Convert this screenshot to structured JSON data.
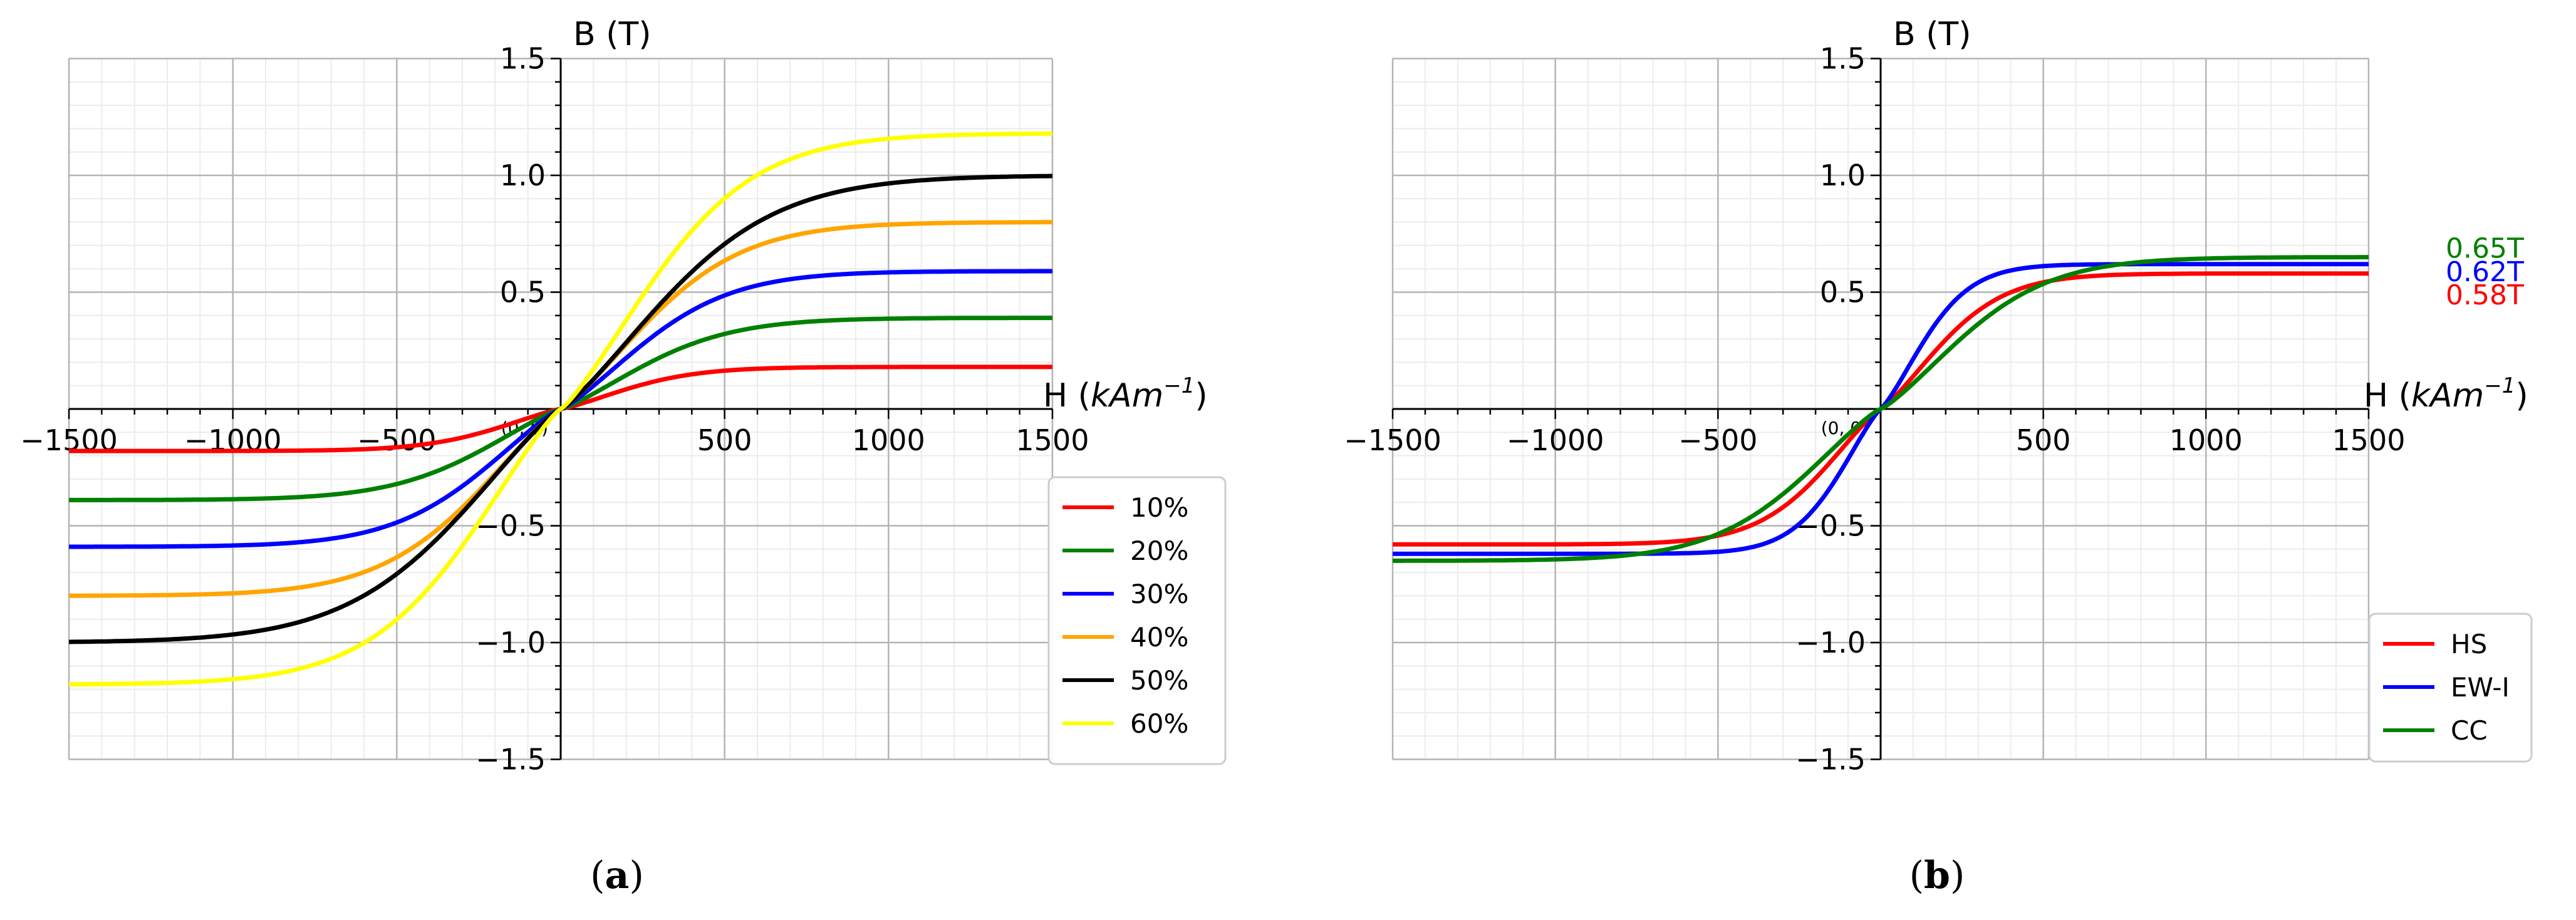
{
  "chart_data": [
    {
      "type": "line",
      "panel_label": "a",
      "ylabel": "B (T)",
      "xlabel_prefix": "H (",
      "xlabel_unit": "kAm",
      "xlabel_exp": "−1",
      "xlabel_suffix": ")",
      "origin_label": "(0, 0)",
      "xlim": [
        -1500,
        1500
      ],
      "ylim": [
        -1.5,
        1.5
      ],
      "xticks": [
        -1500,
        -1000,
        -500,
        500,
        1000,
        1500
      ],
      "xtick_labels": [
        "−1500",
        "−1000",
        "−500",
        "500",
        "1000",
        "1500"
      ],
      "yticks": [
        -1.5,
        -1.0,
        -0.5,
        0.5,
        1.0,
        1.5
      ],
      "ytick_labels": [
        "−1.5",
        "−1.0",
        "−0.5",
        "0.5",
        "1.0",
        "1.5"
      ],
      "grid": true,
      "legend_position": "lower-right",
      "series": [
        {
          "name": "10%",
          "color": "#ff0000",
          "sat": 0.18,
          "knee": 600
        },
        {
          "name": "20%",
          "color": "#008000",
          "sat": 0.39,
          "knee": 750
        },
        {
          "name": "30%",
          "color": "#0000ff",
          "sat": 0.59,
          "knee": 750
        },
        {
          "name": "40%",
          "color": "#ffa500",
          "sat": 0.8,
          "knee": 800
        },
        {
          "name": "50%",
          "color": "#000000",
          "sat": 1.0,
          "knee": 950
        },
        {
          "name": "60%",
          "color": "#ffff00",
          "sat": 1.18,
          "knee": 850
        }
      ]
    },
    {
      "type": "line",
      "panel_label": "b",
      "ylabel": "B (T)",
      "xlabel_prefix": "H (",
      "xlabel_unit": "kAm",
      "xlabel_exp": "−1",
      "xlabel_suffix": ")",
      "origin_label": "(0, 0)",
      "xlim": [
        -1500,
        1500
      ],
      "ylim": [
        -1.5,
        1.5
      ],
      "xticks": [
        -1500,
        -1000,
        -500,
        500,
        1000,
        1500
      ],
      "xtick_labels": [
        "−1500",
        "−1000",
        "−500",
        "500",
        "1000",
        "1500"
      ],
      "yticks": [
        -1.5,
        -1.0,
        -0.5,
        0.5,
        1.0,
        1.5
      ],
      "ytick_labels": [
        "−1.5",
        "−1.0",
        "−0.5",
        "0.5",
        "1.0",
        "1.5"
      ],
      "grid": true,
      "legend_position": "lower-right",
      "series": [
        {
          "name": "HS",
          "color": "#ff0000",
          "sat": 0.58,
          "knee": 550
        },
        {
          "name": "EW-I",
          "color": "#0000ff",
          "sat": 0.62,
          "knee": 400
        },
        {
          "name": "CC",
          "color": "#008000",
          "sat": 0.65,
          "knee": 750
        }
      ],
      "annotations": [
        {
          "text": "0.65T",
          "color": "#008000",
          "y": 0.69
        },
        {
          "text": "0.62T",
          "color": "#0000ff",
          "y": 0.59
        },
        {
          "text": "0.58T",
          "color": "#ff0000",
          "y": 0.49
        }
      ]
    }
  ]
}
